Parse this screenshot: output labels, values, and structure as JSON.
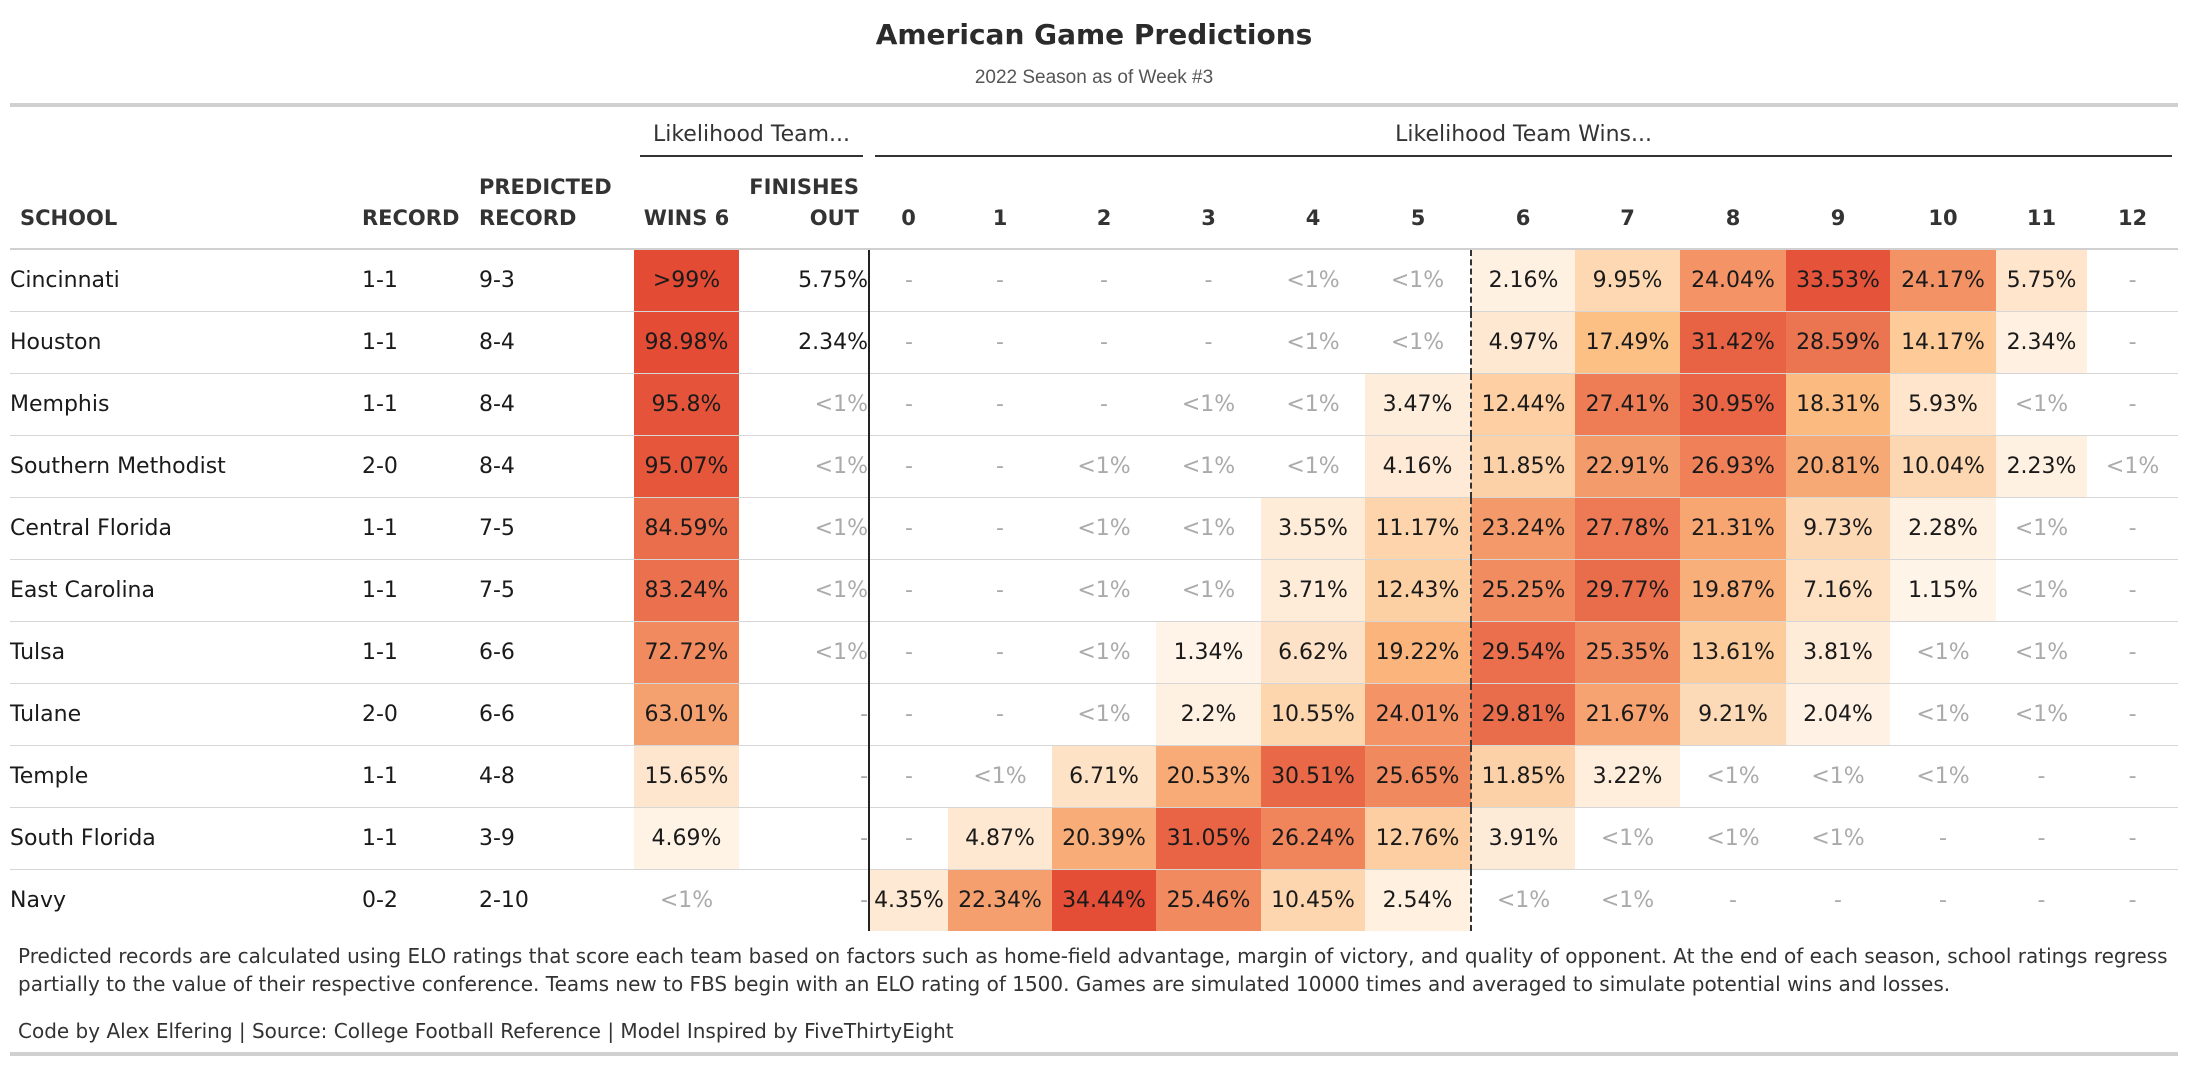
{
  "header": {
    "title": "American Game Predictions",
    "subtitle": "2022 Season as of Week #3"
  },
  "spanners": {
    "likelihood_team": "Likelihood Team...",
    "likelihood_wins": "Likelihood Team Wins..."
  },
  "columns": {
    "school": "SCHOOL",
    "record": "RECORD",
    "predicted_line1": "PREDICTED",
    "predicted_line2": "RECORD",
    "wins6": "WINS 6",
    "finishes_line1": "FINISHES",
    "finishes_line2": "OUT",
    "wins": [
      "0",
      "1",
      "2",
      "3",
      "4",
      "5",
      "6",
      "7",
      "8",
      "9",
      "10",
      "11",
      "12"
    ]
  },
  "rows": [
    {
      "school": "Cincinnati",
      "record": "1-1",
      "predicted": "9-3",
      "wins6": ">99%",
      "finishes": "5.75%",
      "wins": [
        "-",
        "-",
        "-",
        "-",
        "<1%",
        "<1%",
        "2.16%",
        "9.95%",
        "24.04%",
        "33.53%",
        "24.17%",
        "5.75%",
        "-"
      ]
    },
    {
      "school": "Houston",
      "record": "1-1",
      "predicted": "8-4",
      "wins6": "98.98%",
      "finishes": "2.34%",
      "wins": [
        "-",
        "-",
        "-",
        "-",
        "<1%",
        "<1%",
        "4.97%",
        "17.49%",
        "31.42%",
        "28.59%",
        "14.17%",
        "2.34%",
        "-"
      ]
    },
    {
      "school": "Memphis",
      "record": "1-1",
      "predicted": "8-4",
      "wins6": "95.8%",
      "finishes": "<1%",
      "wins": [
        "-",
        "-",
        "-",
        "<1%",
        "<1%",
        "3.47%",
        "12.44%",
        "27.41%",
        "30.95%",
        "18.31%",
        "5.93%",
        "<1%",
        "-"
      ]
    },
    {
      "school": "Southern Methodist",
      "record": "2-0",
      "predicted": "8-4",
      "wins6": "95.07%",
      "finishes": "<1%",
      "wins": [
        "-",
        "-",
        "<1%",
        "<1%",
        "<1%",
        "4.16%",
        "11.85%",
        "22.91%",
        "26.93%",
        "20.81%",
        "10.04%",
        "2.23%",
        "<1%"
      ]
    },
    {
      "school": "Central Florida",
      "record": "1-1",
      "predicted": "7-5",
      "wins6": "84.59%",
      "finishes": "<1%",
      "wins": [
        "-",
        "-",
        "<1%",
        "<1%",
        "3.55%",
        "11.17%",
        "23.24%",
        "27.78%",
        "21.31%",
        "9.73%",
        "2.28%",
        "<1%",
        "-"
      ]
    },
    {
      "school": "East Carolina",
      "record": "1-1",
      "predicted": "7-5",
      "wins6": "83.24%",
      "finishes": "<1%",
      "wins": [
        "-",
        "-",
        "<1%",
        "<1%",
        "3.71%",
        "12.43%",
        "25.25%",
        "29.77%",
        "19.87%",
        "7.16%",
        "1.15%",
        "<1%",
        "-"
      ]
    },
    {
      "school": "Tulsa",
      "record": "1-1",
      "predicted": "6-6",
      "wins6": "72.72%",
      "finishes": "<1%",
      "wins": [
        "-",
        "-",
        "<1%",
        "1.34%",
        "6.62%",
        "19.22%",
        "29.54%",
        "25.35%",
        "13.61%",
        "3.81%",
        "<1%",
        "<1%",
        "-"
      ]
    },
    {
      "school": "Tulane",
      "record": "2-0",
      "predicted": "6-6",
      "wins6": "63.01%",
      "finishes": "-",
      "wins": [
        "-",
        "-",
        "<1%",
        "2.2%",
        "10.55%",
        "24.01%",
        "29.81%",
        "21.67%",
        "9.21%",
        "2.04%",
        "<1%",
        "<1%",
        "-"
      ]
    },
    {
      "school": "Temple",
      "record": "1-1",
      "predicted": "4-8",
      "wins6": "15.65%",
      "finishes": "-",
      "wins": [
        "-",
        "<1%",
        "6.71%",
        "20.53%",
        "30.51%",
        "25.65%",
        "11.85%",
        "3.22%",
        "<1%",
        "<1%",
        "<1%",
        "-",
        "-"
      ]
    },
    {
      "school": "South Florida",
      "record": "1-1",
      "predicted": "3-9",
      "wins6": "4.69%",
      "finishes": "-",
      "wins": [
        "-",
        "4.87%",
        "20.39%",
        "31.05%",
        "26.24%",
        "12.76%",
        "3.91%",
        "<1%",
        "<1%",
        "<1%",
        "-",
        "-",
        "-"
      ]
    },
    {
      "school": "Navy",
      "record": "0-2",
      "predicted": "2-10",
      "wins6": "<1%",
      "finishes": "-",
      "wins": [
        "4.35%",
        "22.34%",
        "34.44%",
        "25.46%",
        "10.45%",
        "2.54%",
        "<1%",
        "<1%",
        "-",
        "-",
        "-",
        "-",
        "-"
      ]
    }
  ],
  "footer": {
    "note": "Predicted records are calculated using ELO ratings that score each team based on factors such as home-field advantage, margin of victory, and quality of opponent. At the end of each season, school ratings regress partially to the value of their respective conference. Teams new to FBS begin with an ELO rating of 1500. Games are simulated 10000 times and averaged to simulate potential wins and losses.",
    "credits": "Code by Alex Elfering | Source: College Football Reference | Model Inspired by FiveThirtyEight"
  },
  "colors": {
    "scale_low": "#fff8ef",
    "scale_mid": "#fcbf84",
    "scale_high": "#e34a33",
    "muted_text": "#aaaaaa"
  }
}
